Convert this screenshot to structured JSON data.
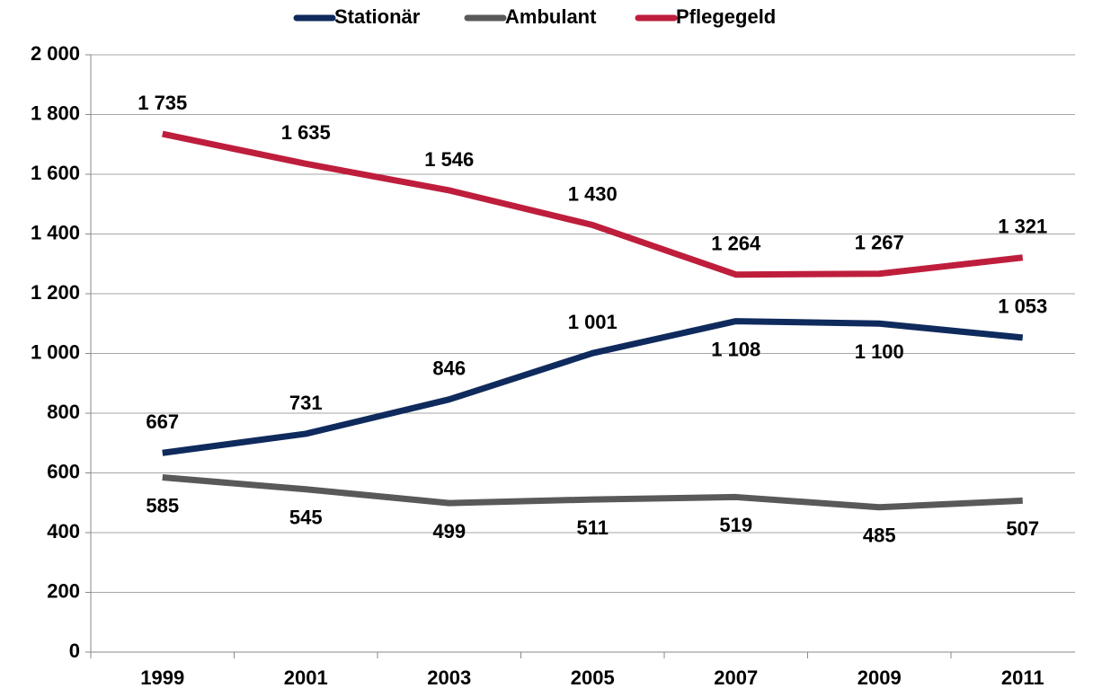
{
  "chart_data": {
    "type": "line",
    "categories": [
      "1999",
      "2001",
      "2003",
      "2005",
      "2007",
      "2009",
      "2011"
    ],
    "series": [
      {
        "name": "Stationär",
        "color": "#0f2a5c",
        "values": [
          667,
          731,
          846,
          1001,
          1108,
          1100,
          1053
        ],
        "value_labels": [
          "667",
          "731",
          "846",
          "1 001",
          "1 108",
          "1 100",
          "1 053"
        ]
      },
      {
        "name": "Ambulant",
        "color": "#595959",
        "values": [
          585,
          545,
          499,
          511,
          519,
          485,
          507
        ],
        "value_labels": [
          "585",
          "545",
          "499",
          "511",
          "519",
          "485",
          "507"
        ]
      },
      {
        "name": "Pflegegeld",
        "color": "#be1e3c",
        "values": [
          1735,
          1635,
          1546,
          1430,
          1264,
          1267,
          1321
        ],
        "value_labels": [
          "1 735",
          "1 635",
          "1 546",
          "1 430",
          "1 264",
          "1 267",
          "1 321"
        ]
      }
    ],
    "ylim": [
      0,
      2000
    ],
    "yticks": [
      0,
      200,
      400,
      600,
      800,
      {
        "value": 1000,
        "label": "1 000"
      },
      {
        "value": 1200,
        "label": "1 200"
      },
      {
        "value": 1400,
        "label": "1 400"
      },
      {
        "value": 1600,
        "label": "1 600"
      },
      {
        "value": 1800,
        "label": "1 800"
      },
      {
        "value": 2000,
        "label": "2 000"
      }
    ],
    "grid": true,
    "legend": "top"
  }
}
